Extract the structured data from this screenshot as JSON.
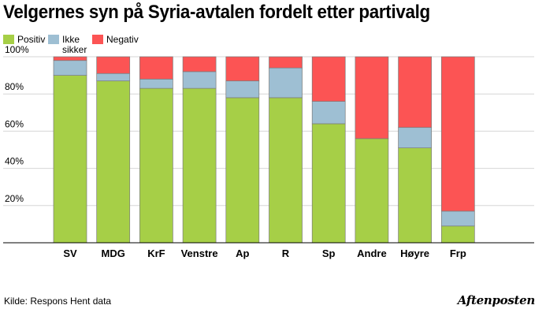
{
  "chart_data": {
    "type": "bar",
    "stacked": true,
    "title": "Velgernes syn på Syria-avtalen fordelt etter partivalg",
    "categories": [
      "SV",
      "MDG",
      "KrF",
      "Venstre",
      "Ap",
      "R",
      "Sp",
      "Andre",
      "Høyre",
      "Frp"
    ],
    "series": [
      {
        "name": "Positiv",
        "color": "#a6cf47",
        "values": [
          90,
          87,
          83,
          83,
          78,
          78,
          64,
          56,
          51,
          9
        ]
      },
      {
        "name": "Ikke\nsikker",
        "color": "#9ebfd3",
        "values": [
          8,
          4,
          5,
          9,
          9,
          16,
          12,
          0,
          11,
          8
        ]
      },
      {
        "name": "Negativ",
        "color": "#fc5454",
        "values": [
          2,
          9,
          12,
          8,
          13,
          6,
          24,
          44,
          38,
          83
        ]
      }
    ],
    "y_ticks": [
      "20%",
      "40%",
      "60%",
      "80%",
      "100%"
    ],
    "ylim": [
      0,
      100
    ],
    "grid": true,
    "legend": "top-left"
  },
  "footer": {
    "source": "Kilde: Respons Hent data",
    "brand": "Aftenposten"
  }
}
